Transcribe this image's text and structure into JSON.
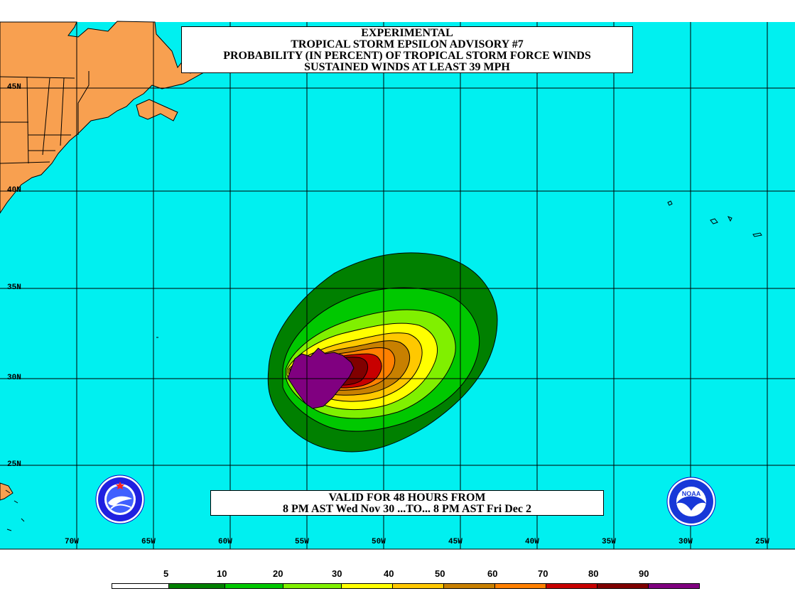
{
  "title": {
    "line1": "EXPERIMENTAL",
    "line2": "TROPICAL STORM EPSILON ADVISORY #7",
    "line3": "PROBABILITY (IN PERCENT) OF TROPICAL STORM FORCE WINDS",
    "line4": "SUSTAINED WINDS AT LEAST 39 MPH"
  },
  "valid": {
    "line1": "VALID FOR 48 HOURS FROM",
    "line2": "8 PM AST Wed Nov 30 ...TO... 8 PM AST Fri Dec 2"
  },
  "latitudes": [
    "45N",
    "40N",
    "35N",
    "30N",
    "25N"
  ],
  "longitudes": [
    "70W",
    "65W",
    "60W",
    "55W",
    "50W",
    "45W",
    "40W",
    "35W",
    "30W",
    "25W"
  ],
  "legend": {
    "labels": [
      "5",
      "10",
      "20",
      "30",
      "40",
      "50",
      "60",
      "70",
      "80",
      "90"
    ],
    "colors": [
      "#ffffff",
      "#008000",
      "#00c800",
      "#80f000",
      "#ffff00",
      "#ffc800",
      "#c88000",
      "#ff8000",
      "#c80000",
      "#800000",
      "#800080"
    ]
  },
  "colors": {
    "ocean": "#00f0f0",
    "land": "#f8a050",
    "grid": "#000000"
  },
  "icons": {
    "left_logo": "national-weather-service-logo",
    "right_logo": "noaa-logo"
  }
}
